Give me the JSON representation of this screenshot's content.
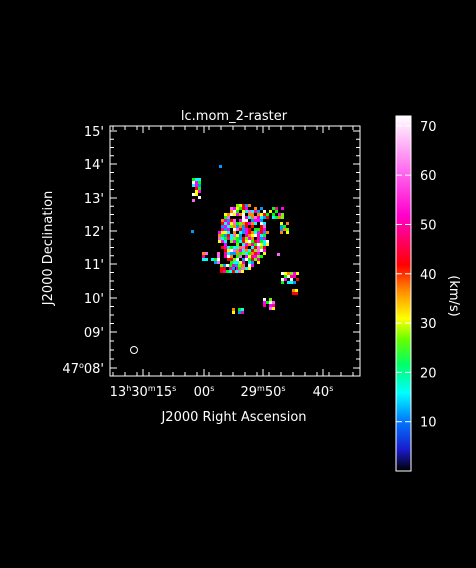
{
  "chart_data": {
    "type": "heatmap",
    "title": "lc.mom_2-raster",
    "xlabel": "J2000 Right Ascension",
    "ylabel": "J2000 Declination",
    "colorbar_label": "(km/s)",
    "colorbar_range": [
      0,
      72
    ],
    "colorbar_ticks": [
      "10",
      "20",
      "30",
      "40",
      "50",
      "60",
      "70"
    ],
    "colorbar_tick_values": [
      10,
      20,
      30,
      40,
      50,
      60,
      70
    ],
    "x_ticks": [
      {
        "h": "13",
        "hu": "h",
        "m": "30",
        "mu": "m",
        "s": "15",
        "su": "s"
      },
      {
        "s": "00",
        "su": "s"
      },
      {
        "m": "29",
        "mu": "m",
        "s": "50",
        "su": "s"
      },
      {
        "s": "40",
        "su": "s"
      }
    ],
    "y_ticks": [
      {
        "d": "47",
        "du": "o",
        "m": "08",
        "mu": "'"
      },
      {
        "m": "09",
        "mu": "'"
      },
      {
        "m": "10",
        "mu": "'"
      },
      {
        "m": "11",
        "mu": "'"
      },
      {
        "m": "12",
        "mu": "'"
      },
      {
        "m": "13",
        "mu": "'"
      },
      {
        "m": "14",
        "mu": "'"
      },
      {
        "m": "15",
        "mu": "'"
      }
    ],
    "beam_symbol": "ellipse",
    "grid": false,
    "colors": {
      "background": "#000000",
      "axes": "#ffffff",
      "text": "#ffffff"
    }
  }
}
